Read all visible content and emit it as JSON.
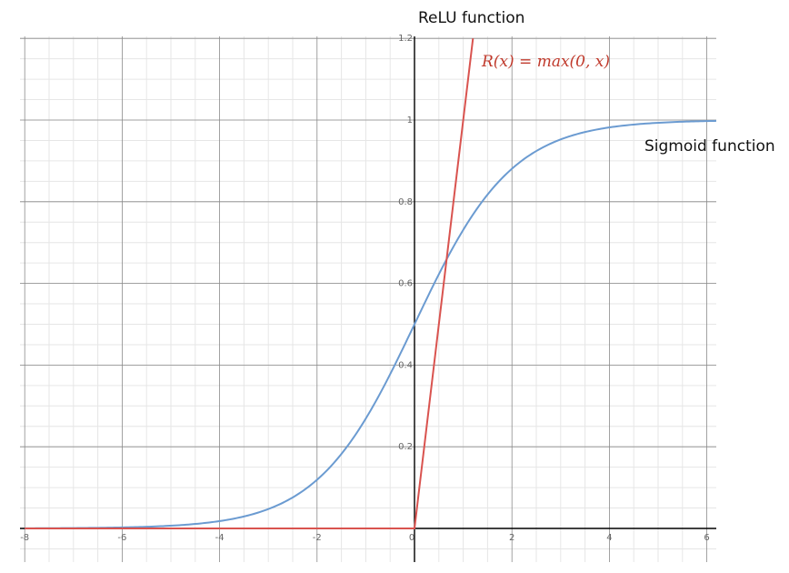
{
  "chart_data": {
    "type": "line",
    "xlim": [
      -8,
      6
    ],
    "ylim": [
      0,
      1.2
    ],
    "grid": true,
    "x_ticks": [
      "-8",
      "-6",
      "-4",
      "-2",
      "0",
      "2",
      "4",
      "6"
    ],
    "y_ticks": [
      "0.2",
      "0.4",
      "0.6",
      "0.8",
      "1",
      "1.2"
    ],
    "series": [
      {
        "name": "Sigmoid function",
        "color": "#6b9bd1",
        "x": [
          -8,
          -6,
          -5,
          -4,
          -3,
          -2.5,
          -2,
          -1.5,
          -1,
          -0.5,
          0,
          0.5,
          1,
          1.5,
          2,
          2.5,
          3,
          4,
          5,
          6
        ],
        "y": [
          0.0003,
          0.0025,
          0.0067,
          0.018,
          0.047,
          0.076,
          0.119,
          0.182,
          0.269,
          0.378,
          0.5,
          0.622,
          0.731,
          0.818,
          0.881,
          0.924,
          0.953,
          0.982,
          0.993,
          0.998
        ]
      },
      {
        "name": "ReLU function",
        "color": "#d9534f",
        "x": [
          -8,
          0,
          1.2
        ],
        "y": [
          0,
          0,
          1.2
        ]
      }
    ],
    "annotations": {
      "relu_title": "ReLU function",
      "relu_formula": "R(x) = max(0, x)",
      "sigmoid_title": "Sigmoid function"
    }
  }
}
